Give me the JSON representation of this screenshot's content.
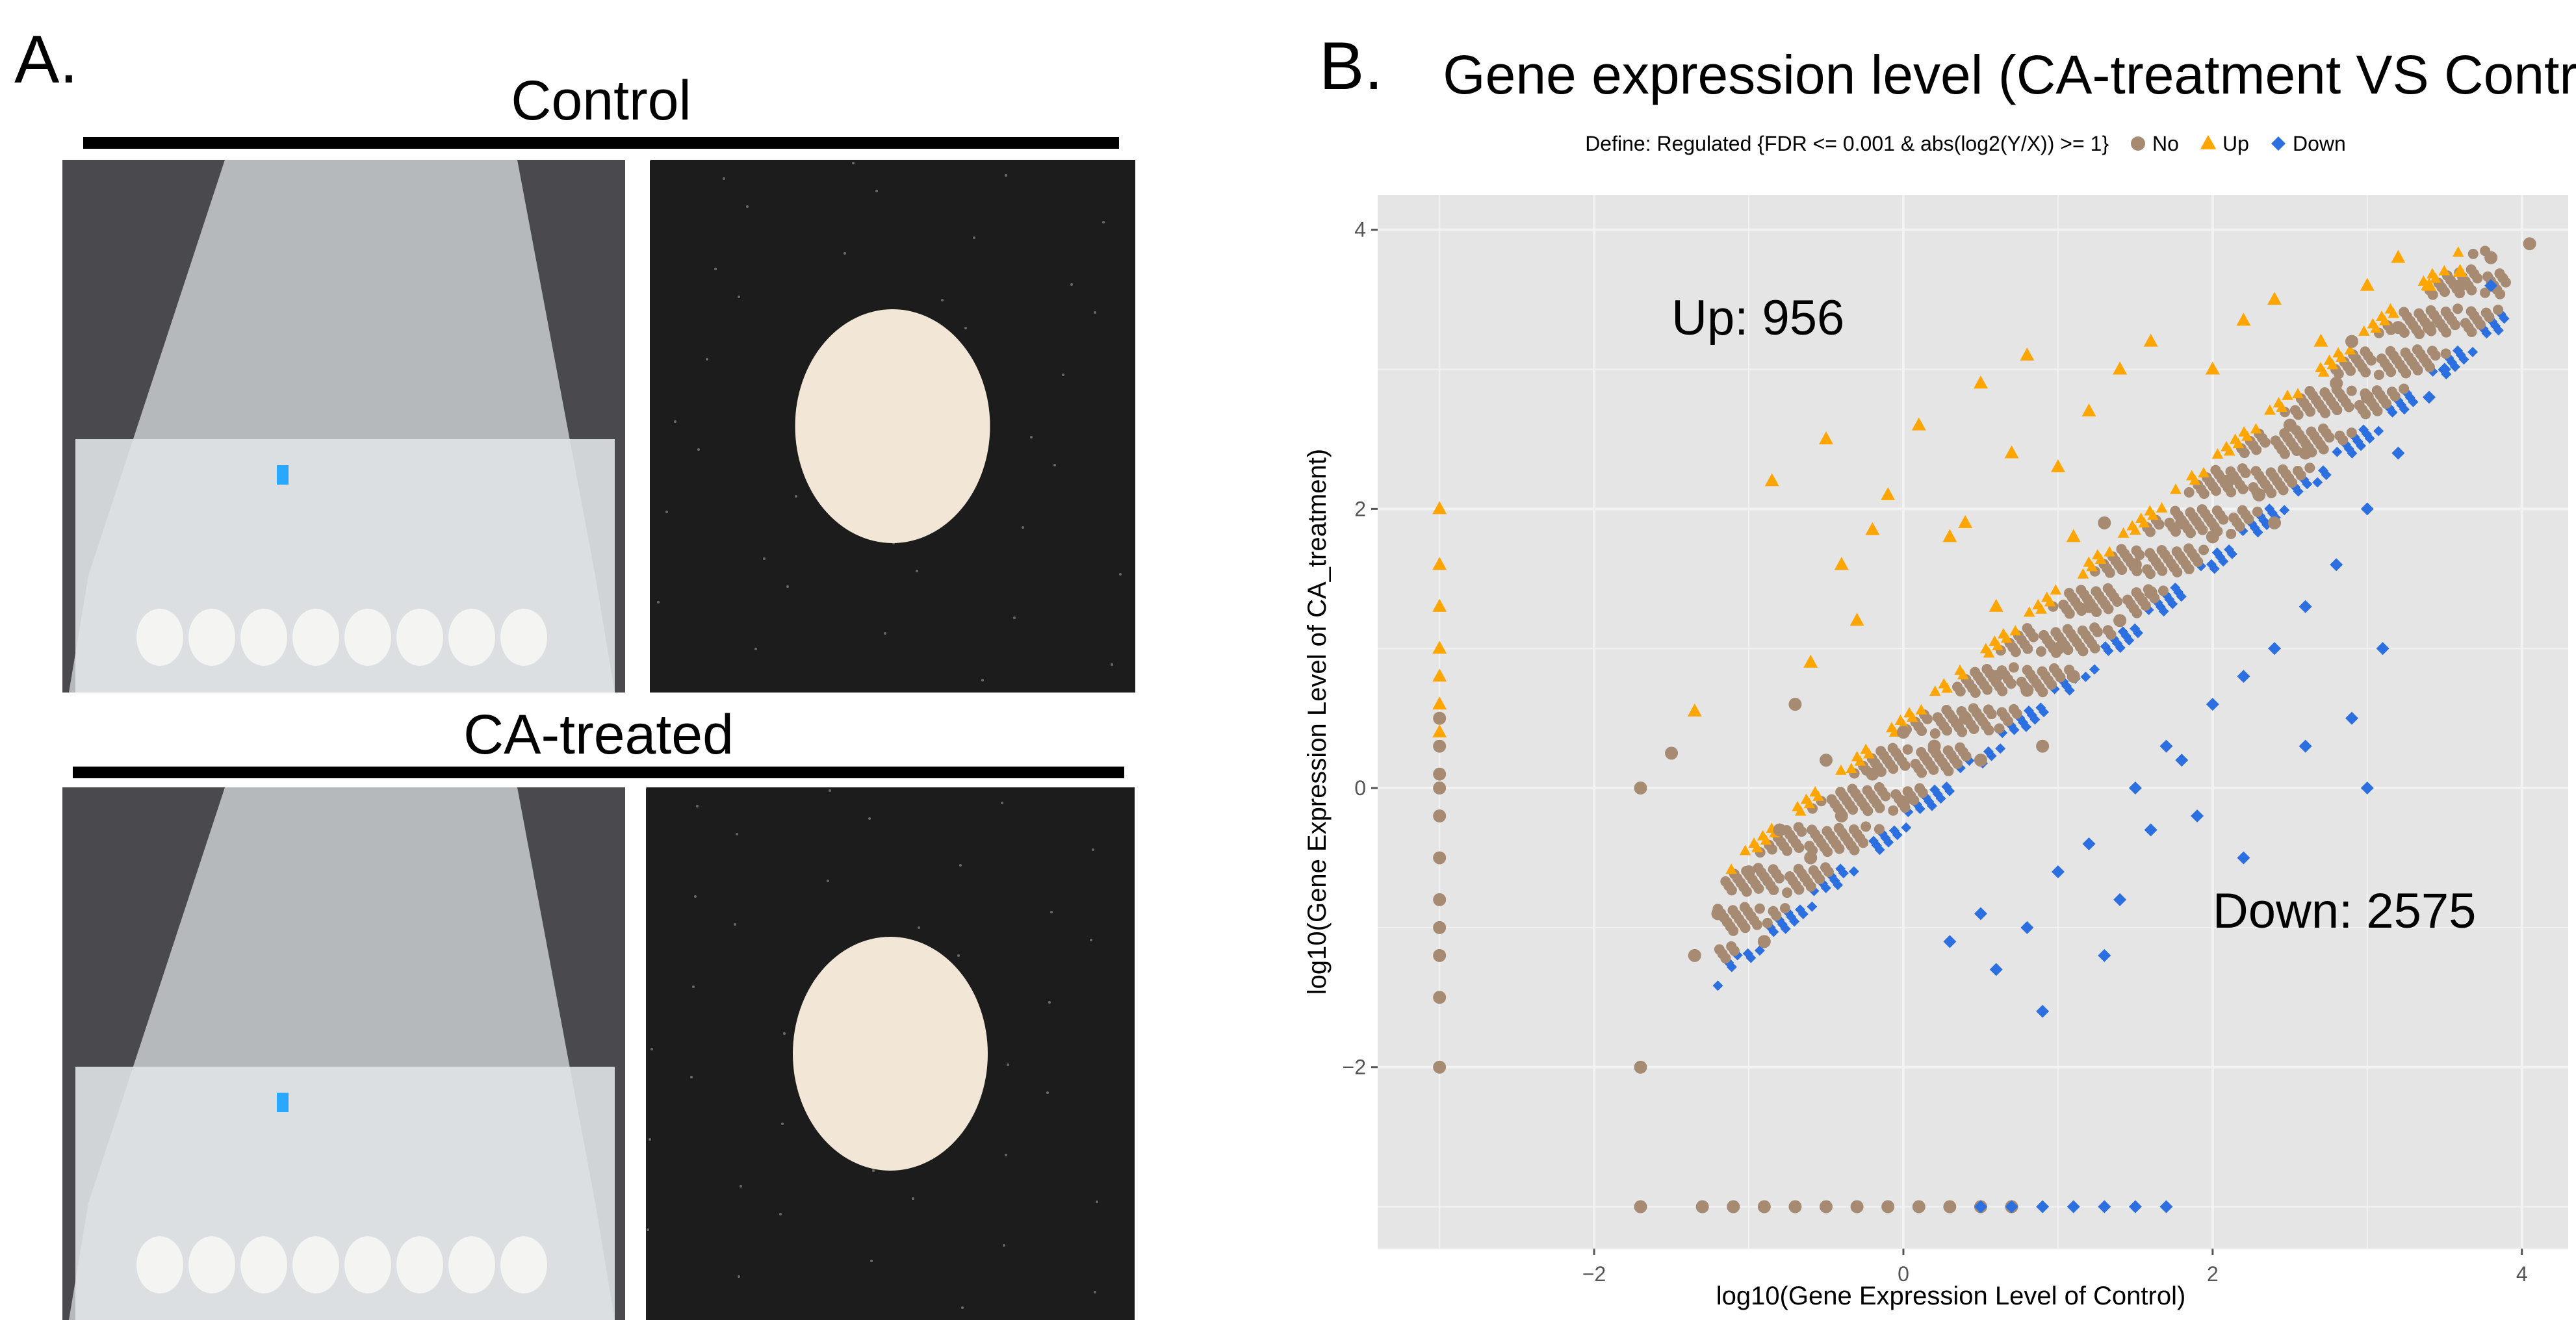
{
  "panel_a": {
    "letter": "A.",
    "control_label": "Control",
    "treated_label": "CA-treated",
    "photos": [
      {
        "name": "control-flask-photo",
        "scene": "flask"
      },
      {
        "name": "control-mycelium-photo",
        "scene": "mycelium"
      },
      {
        "name": "treated-flask-photo",
        "scene": "flask"
      },
      {
        "name": "treated-mycelium-photo",
        "scene": "mycelium"
      }
    ]
  },
  "panel_b": {
    "letter": "B."
  },
  "chart_data": {
    "type": "scatter",
    "title": "Gene expression level (CA-treatment VS Control)",
    "subtitle": "Define: Regulated {FDR <= 0.001 & abs(log2(Y/X)) >= 1}",
    "xlabel": "log10(Gene Expression Level of Control)",
    "ylabel": "log10(Gene Expression Level of CA_treatment)",
    "xlim": [
      -3.4,
      4.35
    ],
    "ylim": [
      -3.3,
      4.25
    ],
    "xticks": [
      -2,
      0,
      2,
      4
    ],
    "yticks": [
      -2,
      0,
      2,
      4
    ],
    "grid": true,
    "legend_position": "top",
    "legend": [
      {
        "label": "No",
        "color": "#a68a72",
        "shape": "circle"
      },
      {
        "label": "Up",
        "color": "#ffa500",
        "shape": "triangle"
      },
      {
        "label": "Down",
        "color": "#2b6fe0",
        "shape": "diamond"
      }
    ],
    "annotations": [
      {
        "text": "Up: 956",
        "x": -1.5,
        "y": 3.25
      },
      {
        "text": "Down: 2575",
        "x": 2.0,
        "y": -1.0
      }
    ],
    "background": "#e5e5e5",
    "series": [
      {
        "name": "No",
        "color": "#a68a72",
        "shape": "circle",
        "points": [
          [
            -3.0,
            0.5
          ],
          [
            -3.0,
            0.3
          ],
          [
            -3.0,
            0.1
          ],
          [
            -3.0,
            -0.2
          ],
          [
            -3.0,
            -0.5
          ],
          [
            -3.0,
            -0.8
          ],
          [
            -3.0,
            -1.2
          ],
          [
            -3.0,
            -1.5
          ],
          [
            -3.0,
            -2.0
          ],
          [
            -3.0,
            0.0
          ],
          [
            -3.0,
            -1.0
          ],
          [
            -1.7,
            0.0
          ],
          [
            -1.7,
            -2.0
          ],
          [
            -1.7,
            -3.0
          ],
          [
            -1.3,
            -3.0
          ],
          [
            -1.1,
            -3.0
          ],
          [
            -0.9,
            -3.0
          ],
          [
            -0.7,
            -3.0
          ],
          [
            -0.5,
            -3.0
          ],
          [
            -0.3,
            -3.0
          ],
          [
            -0.1,
            -3.0
          ],
          [
            0.1,
            -3.0
          ],
          [
            0.3,
            -3.0
          ],
          [
            0.5,
            -3.0
          ],
          [
            0.7,
            -3.0
          ],
          [
            -1.35,
            -1.2
          ],
          [
            -1.2,
            -0.9
          ],
          [
            -1.0,
            -0.6
          ],
          [
            -0.9,
            -1.1
          ],
          [
            -0.8,
            -0.3
          ],
          [
            -0.6,
            -0.5
          ],
          [
            -0.5,
            0.2
          ],
          [
            -0.4,
            -0.2
          ],
          [
            -0.2,
            0.1
          ],
          [
            0.0,
            -0.1
          ],
          [
            0.0,
            0.4
          ],
          [
            0.2,
            0.3
          ],
          [
            0.4,
            0.5
          ],
          [
            0.5,
            0.2
          ],
          [
            0.6,
            0.8
          ],
          [
            0.8,
            0.7
          ],
          [
            1.0,
            1.0
          ],
          [
            1.1,
            0.8
          ],
          [
            1.2,
            1.3
          ],
          [
            1.4,
            1.2
          ],
          [
            1.5,
            1.6
          ],
          [
            1.6,
            1.4
          ],
          [
            1.8,
            1.9
          ],
          [
            2.0,
            1.8
          ],
          [
            2.1,
            2.2
          ],
          [
            2.3,
            2.1
          ],
          [
            2.5,
            2.6
          ],
          [
            2.6,
            2.4
          ],
          [
            2.8,
            2.9
          ],
          [
            3.0,
            2.8
          ],
          [
            3.2,
            3.3
          ],
          [
            3.4,
            3.3
          ],
          [
            3.6,
            3.6
          ],
          [
            3.8,
            3.8
          ],
          [
            4.05,
            3.9
          ],
          [
            -1.5,
            0.25
          ],
          [
            -0.7,
            0.6
          ],
          [
            0.9,
            0.3
          ],
          [
            1.3,
            1.9
          ],
          [
            2.4,
            1.9
          ],
          [
            2.9,
            3.2
          ]
        ]
      },
      {
        "name": "Up",
        "color": "#ffa500",
        "shape": "triangle",
        "points": [
          [
            -3.0,
            2.0
          ],
          [
            -3.0,
            1.6
          ],
          [
            -3.0,
            1.3
          ],
          [
            -3.0,
            1.0
          ],
          [
            -3.0,
            0.8
          ],
          [
            -3.0,
            0.6
          ],
          [
            -3.0,
            0.4
          ],
          [
            -1.35,
            0.55
          ],
          [
            -0.85,
            2.2
          ],
          [
            -0.5,
            2.5
          ],
          [
            -0.4,
            1.6
          ],
          [
            -0.2,
            1.85
          ],
          [
            -0.1,
            2.1
          ],
          [
            0.1,
            2.6
          ],
          [
            0.3,
            1.8
          ],
          [
            0.4,
            1.9
          ],
          [
            0.5,
            2.9
          ],
          [
            0.7,
            2.4
          ],
          [
            0.8,
            3.1
          ],
          [
            1.0,
            2.3
          ],
          [
            1.2,
            2.7
          ],
          [
            1.4,
            3.0
          ],
          [
            1.6,
            3.2
          ],
          [
            2.0,
            3.0
          ],
          [
            2.2,
            3.35
          ],
          [
            2.4,
            3.5
          ],
          [
            2.7,
            3.2
          ],
          [
            3.0,
            3.6
          ],
          [
            3.2,
            3.8
          ],
          [
            3.4,
            3.6
          ],
          [
            3.6,
            3.7
          ],
          [
            -0.6,
            0.9
          ],
          [
            -0.3,
            1.2
          ],
          [
            0.6,
            1.3
          ],
          [
            1.1,
            1.8
          ]
        ]
      },
      {
        "name": "Down",
        "color": "#2b6fe0",
        "shape": "diamond",
        "points": [
          [
            0.5,
            -3.0
          ],
          [
            0.7,
            -3.0
          ],
          [
            0.9,
            -3.0
          ],
          [
            1.1,
            -3.0
          ],
          [
            1.3,
            -3.0
          ],
          [
            1.5,
            -3.0
          ],
          [
            1.7,
            -3.0
          ],
          [
            0.3,
            -1.1
          ],
          [
            0.5,
            -0.9
          ],
          [
            0.6,
            -1.3
          ],
          [
            0.8,
            -1.0
          ],
          [
            0.9,
            -1.6
          ],
          [
            1.0,
            -0.6
          ],
          [
            1.2,
            -0.4
          ],
          [
            1.3,
            -1.2
          ],
          [
            1.4,
            -0.8
          ],
          [
            1.5,
            0.0
          ],
          [
            1.6,
            -0.3
          ],
          [
            1.7,
            0.3
          ],
          [
            1.8,
            0.2
          ],
          [
            2.0,
            0.6
          ],
          [
            2.2,
            -0.5
          ],
          [
            2.2,
            0.8
          ],
          [
            2.4,
            1.0
          ],
          [
            2.6,
            0.3
          ],
          [
            2.6,
            1.3
          ],
          [
            2.8,
            1.6
          ],
          [
            3.0,
            0.0
          ],
          [
            3.0,
            2.0
          ],
          [
            3.1,
            1.0
          ],
          [
            3.2,
            2.4
          ],
          [
            3.4,
            2.8
          ],
          [
            3.5,
            3.0
          ],
          [
            3.8,
            3.6
          ],
          [
            2.9,
            0.5
          ],
          [
            1.9,
            -0.2
          ]
        ]
      }
    ]
  }
}
